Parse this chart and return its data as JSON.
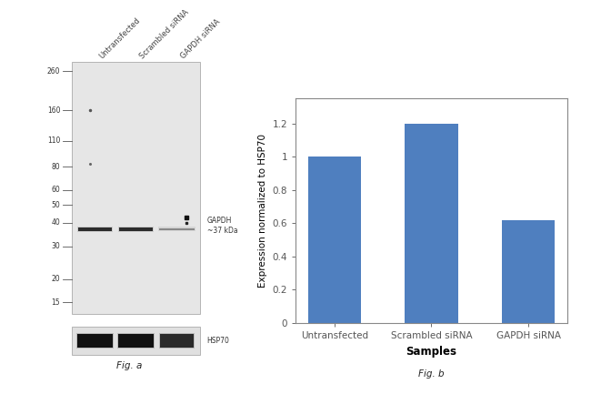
{
  "fig_width": 6.5,
  "fig_height": 4.33,
  "dpi": 100,
  "background_color": "#ffffff",
  "wb_panel": {
    "lane_labels": [
      "Untransfected",
      "Scrambled siRNA",
      "GAPDH siRNA"
    ],
    "label_fontsize": 6.0,
    "label_rotation": 45,
    "mw_markers": [
      260,
      160,
      110,
      80,
      60,
      50,
      40,
      30,
      20,
      15
    ],
    "mw_label_fontsize": 5.5,
    "gapdh_label": "GAPDH\n~37 kDa",
    "gapdh_label_fontsize": 5.5,
    "hsp70_label": "HSP70",
    "hsp70_label_fontsize": 5.5,
    "fig_label": "Fig. a",
    "fig_label_fontsize": 7.5
  },
  "bar_panel": {
    "categories": [
      "Untransfected",
      "Scrambled siRNA",
      "GAPDH siRNA"
    ],
    "values": [
      1.0,
      1.2,
      0.62
    ],
    "bar_color": "#4f7fbf",
    "bar_width": 0.55,
    "ylim": [
      0,
      1.35
    ],
    "yticks": [
      0,
      0.2,
      0.4,
      0.6,
      0.8,
      1.0,
      1.2
    ],
    "ytick_labels": [
      "0",
      "0.2",
      "0.4",
      "0.6",
      "0.8",
      "1",
      "1.2"
    ],
    "ylabel": "Expression normalized to HSP70",
    "xlabel": "Samples",
    "ylabel_fontsize": 7.5,
    "xlabel_fontsize": 8.5,
    "tick_fontsize": 7.5,
    "fig_label": "Fig. b",
    "fig_label_fontsize": 7.5
  }
}
